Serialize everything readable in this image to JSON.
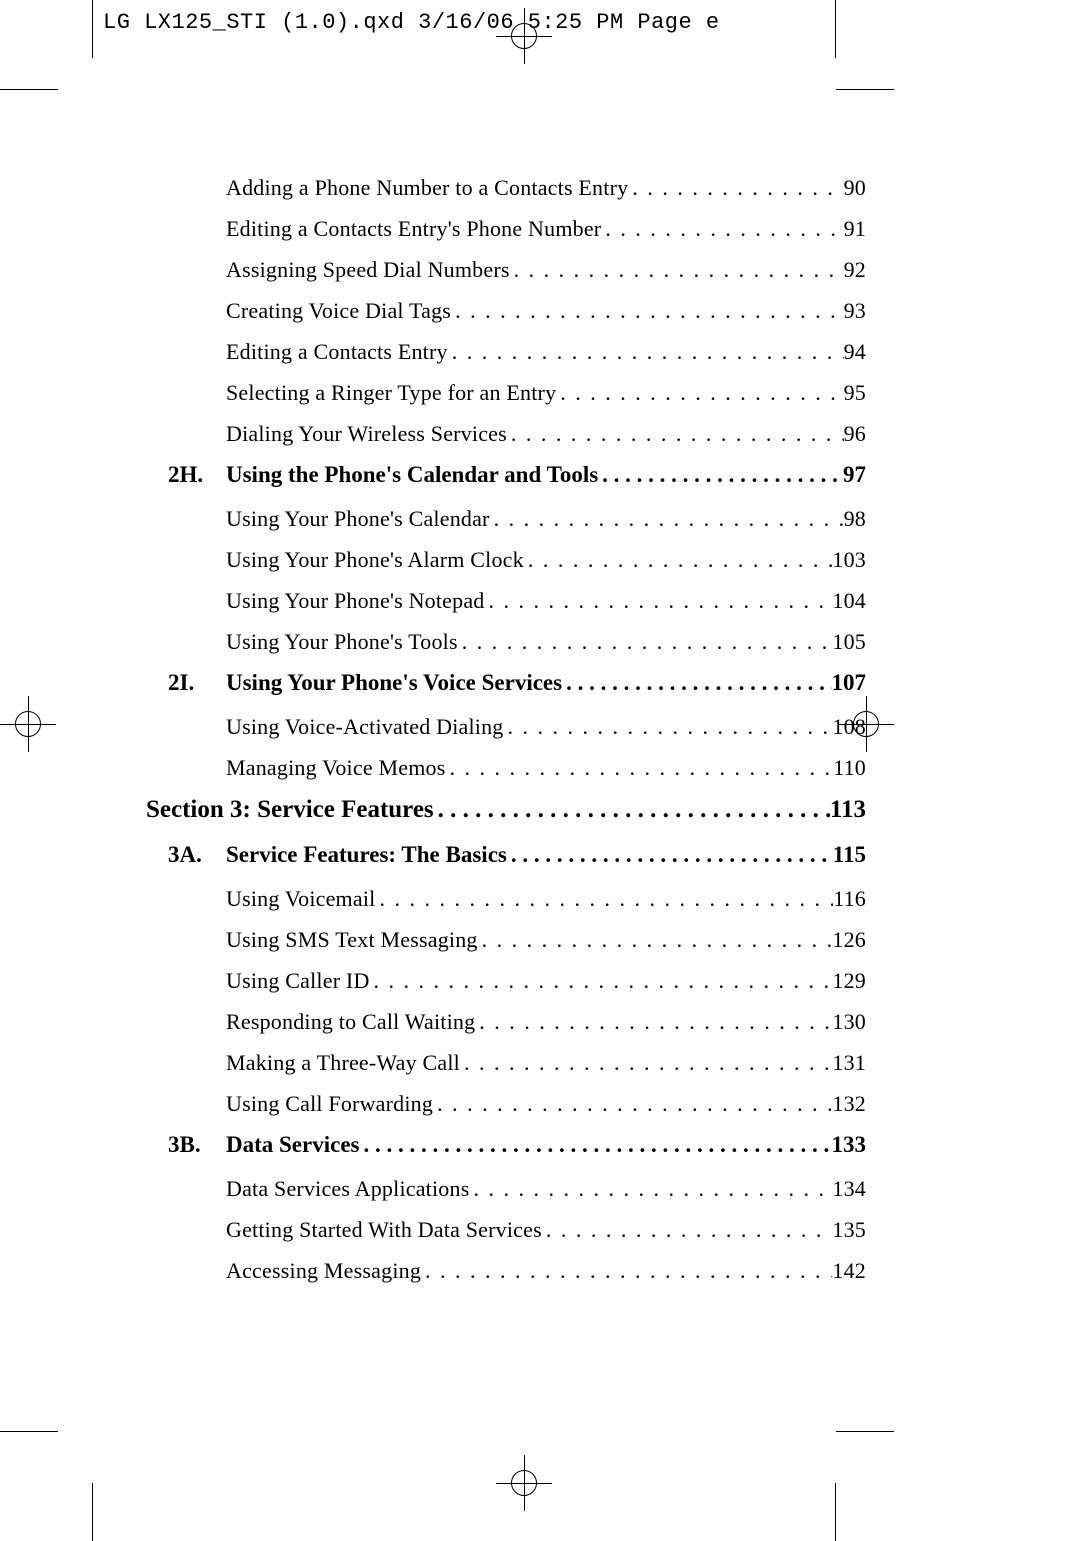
{
  "slug": "LG LX125_STI (1.0).qxd  3/16/06  5:25 PM  Page e",
  "colors": {
    "text": "#000000",
    "background": "#ffffff"
  },
  "typography": {
    "body_family": "Georgia, Times New Roman, serif",
    "mono_family": "Courier New, monospace",
    "section_fontsize_pt": 19,
    "sub_fontsize_pt": 17,
    "entry_fontsize_pt": 16
  },
  "toc": [
    {
      "type": "entry",
      "label": "Adding a Phone Number to a Contacts Entry",
      "page": "90"
    },
    {
      "type": "entry",
      "label": "Editing a Contacts Entry's Phone Number",
      "page": "91"
    },
    {
      "type": "entry",
      "label": "Assigning Speed Dial Numbers",
      "page": "92"
    },
    {
      "type": "entry",
      "label": "Creating Voice Dial Tags",
      "page": "93"
    },
    {
      "type": "entry",
      "label": "Editing a Contacts Entry",
      "page": "94"
    },
    {
      "type": "entry",
      "label": "Selecting a Ringer Type for an Entry",
      "page": "95"
    },
    {
      "type": "entry",
      "label": "Dialing Your Wireless Services",
      "page": "96"
    },
    {
      "type": "sub",
      "prefix": "2H.",
      "label": "Using the Phone's Calendar and Tools",
      "page": "97"
    },
    {
      "type": "entry",
      "label": "Using Your Phone's Calendar",
      "page": "98"
    },
    {
      "type": "entry",
      "label": "Using Your Phone's Alarm Clock",
      "page": "103"
    },
    {
      "type": "entry",
      "label": "Using Your Phone's Notepad",
      "page": "104"
    },
    {
      "type": "entry",
      "label": "Using Your Phone's Tools",
      "page": "105"
    },
    {
      "type": "sub",
      "prefix": "2I.",
      "label": "Using Your Phone's Voice Services",
      "page": "107"
    },
    {
      "type": "entry",
      "label": "Using Voice-Activated Dialing",
      "page": "108"
    },
    {
      "type": "entry",
      "label": "Managing Voice Memos",
      "page": "110"
    },
    {
      "type": "section",
      "label": "Section 3: Service Features",
      "page": "113"
    },
    {
      "type": "sub",
      "prefix": "3A.",
      "label": "Service Features: The Basics",
      "page": "115"
    },
    {
      "type": "entry",
      "label": "Using Voicemail",
      "page": "116"
    },
    {
      "type": "entry",
      "label": "Using SMS Text Messaging",
      "page": "126"
    },
    {
      "type": "entry",
      "label": "Using Caller ID",
      "page": "129"
    },
    {
      "type": "entry",
      "label": "Responding to Call Waiting",
      "page": "130"
    },
    {
      "type": "entry",
      "label": "Making a Three-Way Call",
      "page": "131"
    },
    {
      "type": "entry",
      "label": "Using Call Forwarding",
      "page": "132"
    },
    {
      "type": "sub",
      "prefix": "3B.",
      "label": "Data Services",
      "page": "133"
    },
    {
      "type": "entry",
      "label": "Data Services Applications",
      "page": "134"
    },
    {
      "type": "entry",
      "label": "Getting Started With Data Services",
      "page": "135"
    },
    {
      "type": "entry",
      "label": "Accessing Messaging",
      "page": "142"
    }
  ]
}
